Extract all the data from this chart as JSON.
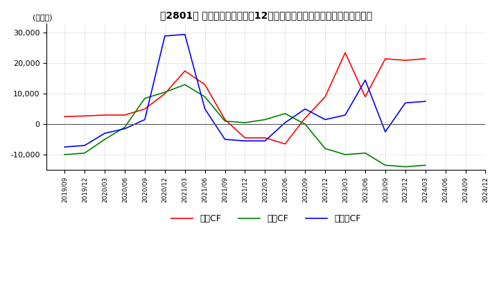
{
  "title": "　2801　 キャッシュフローの12か月移動合計の対前年同期増減額の推移",
  "ylabel": "(百万円)",
  "ylim": [
    -15000,
    33000
  ],
  "yticks": [
    -10000,
    0,
    10000,
    20000,
    30000
  ],
  "legend_labels": [
    "営業CF",
    "投資CF",
    "フリーCF"
  ],
  "line_colors": [
    "#ff0000",
    "#008000",
    "#0000ff"
  ],
  "dates": [
    "2019/09",
    "2019/12",
    "2020/03",
    "2020/06",
    "2020/09",
    "2020/12",
    "2021/03",
    "2021/06",
    "2021/09",
    "2021/12",
    "2022/03",
    "2022/06",
    "2022/09",
    "2022/12",
    "2023/03",
    "2023/06",
    "2023/09",
    "2023/12",
    "2024/03",
    "2024/06",
    "2024/09",
    "2024/12"
  ],
  "operating_cf": [
    2500,
    2700,
    3000,
    3000,
    5000,
    10000,
    17500,
    13000,
    1500,
    -4500,
    -4500,
    -6500,
    2000,
    9000,
    23500,
    9000,
    21500,
    21000,
    21500,
    null,
    null,
    null
  ],
  "investing_cf": [
    -10000,
    -9500,
    -5000,
    -1000,
    8500,
    10500,
    13000,
    9000,
    1000,
    500,
    1500,
    3500,
    0,
    -8000,
    -10000,
    -9500,
    -13500,
    -14000,
    -13500,
    null,
    null,
    null
  ],
  "free_cf": [
    -7500,
    -7000,
    -3000,
    -1500,
    1500,
    29000,
    29500,
    5000,
    -5000,
    -5500,
    -5500,
    500,
    5000,
    1500,
    3000,
    14500,
    -2500,
    7000,
    7500,
    null,
    null,
    null
  ],
  "background_color": "#ffffff",
  "grid_color": "#aaaaaa"
}
